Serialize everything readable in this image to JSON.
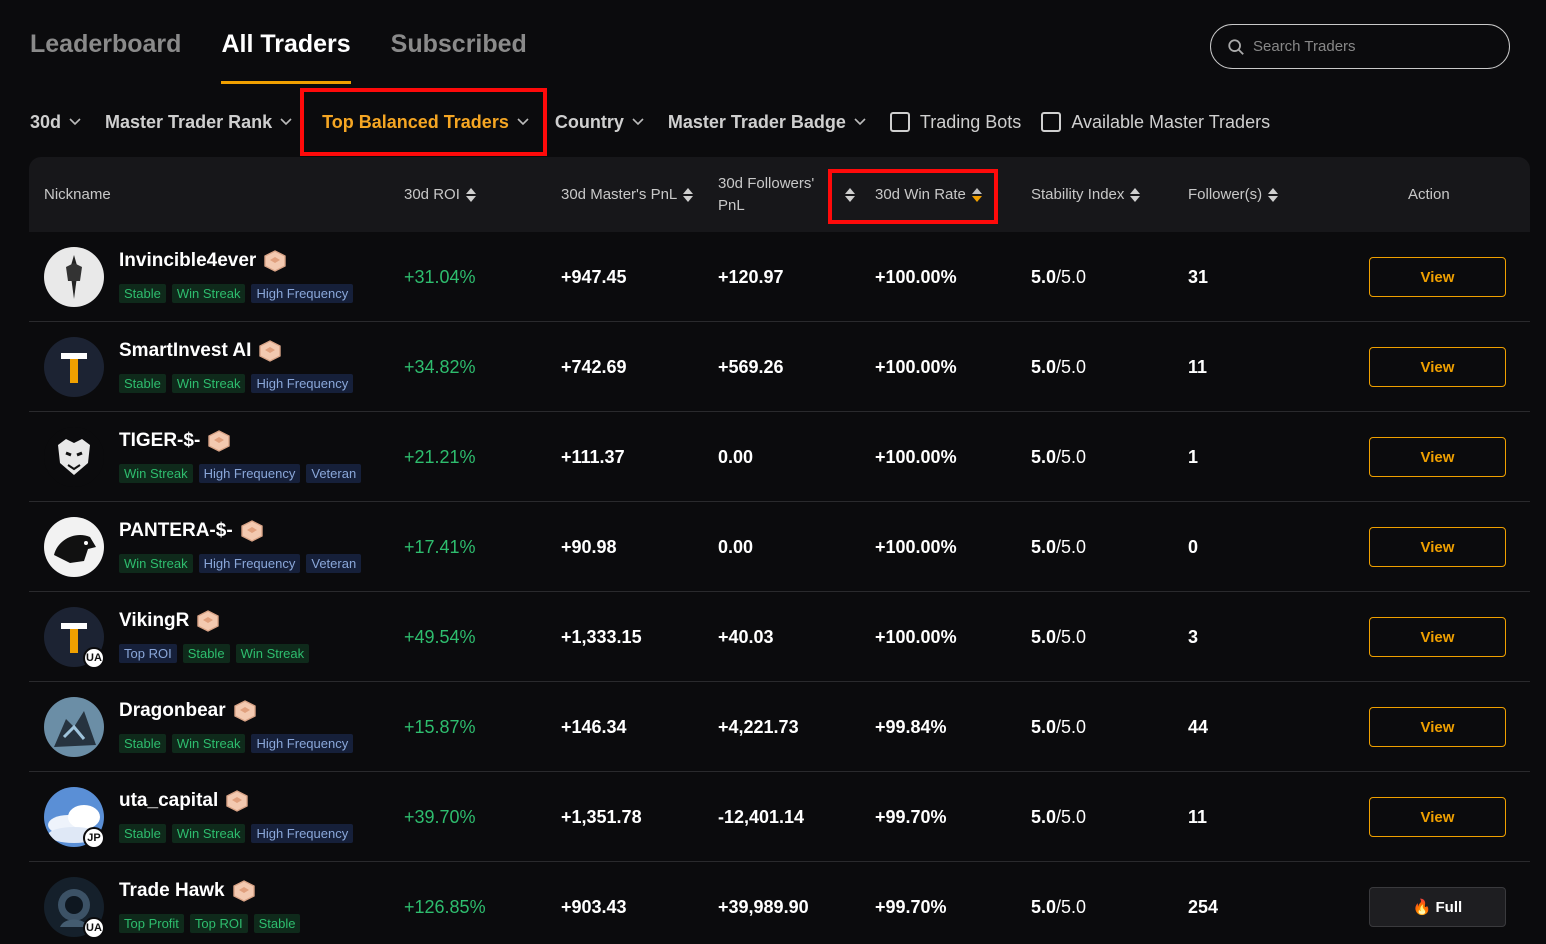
{
  "tabs": [
    {
      "label": "Leaderboard",
      "active": false
    },
    {
      "label": "All Traders",
      "active": true
    },
    {
      "label": "Subscribed",
      "active": false
    }
  ],
  "search": {
    "placeholder": "Search Traders"
  },
  "filters": {
    "period": "30d",
    "rank": "Master Trader Rank",
    "balanced": "Top Balanced Traders",
    "country": "Country",
    "badge": "Master Trader Badge",
    "bots": "Trading Bots",
    "available": "Available Master Traders"
  },
  "columns": {
    "nickname": "Nickname",
    "roi": "30d ROI",
    "pnl": "30d Master's PnL",
    "followers_pnl_1": "30d Followers'",
    "followers_pnl_2": "PnL",
    "win_rate": "30d Win Rate",
    "stability": "Stability Index",
    "followers": "Follower(s)",
    "action": "Action"
  },
  "colors": {
    "accent": "#f0a000",
    "positive": "#2ebd6e",
    "highlight": "#ff0a0a"
  },
  "rows": [
    {
      "nick": "Invincible4ever",
      "tags": [
        [
          "Stable",
          "green"
        ],
        [
          "Win Streak",
          "green"
        ],
        [
          "High Frequency",
          "blue"
        ]
      ],
      "roi": "+31.04%",
      "pnl": "+947.45",
      "fpnl": "+120.97",
      "wr": "+100.00%",
      "stab": "5.0",
      "stab_max": "/5.0",
      "followers": "31",
      "action": "View",
      "flag": ""
    },
    {
      "nick": "SmartInvest AI",
      "tags": [
        [
          "Stable",
          "green"
        ],
        [
          "Win Streak",
          "green"
        ],
        [
          "High Frequency",
          "blue"
        ]
      ],
      "roi": "+34.82%",
      "pnl": "+742.69",
      "fpnl": "+569.26",
      "wr": "+100.00%",
      "stab": "5.0",
      "stab_max": "/5.0",
      "followers": "11",
      "action": "View",
      "flag": ""
    },
    {
      "nick": "TIGER-$-",
      "tags": [
        [
          "Win Streak",
          "green"
        ],
        [
          "High Frequency",
          "blue"
        ],
        [
          "Veteran",
          "blue"
        ]
      ],
      "roi": "+21.21%",
      "pnl": "+111.37",
      "fpnl": "0.00",
      "wr": "+100.00%",
      "stab": "5.0",
      "stab_max": "/5.0",
      "followers": "1",
      "action": "View",
      "flag": ""
    },
    {
      "nick": "PANTERA-$-",
      "tags": [
        [
          "Win Streak",
          "green"
        ],
        [
          "High Frequency",
          "blue"
        ],
        [
          "Veteran",
          "blue"
        ]
      ],
      "roi": "+17.41%",
      "pnl": "+90.98",
      "fpnl": "0.00",
      "wr": "+100.00%",
      "stab": "5.0",
      "stab_max": "/5.0",
      "followers": "0",
      "action": "View",
      "flag": ""
    },
    {
      "nick": "VikingR",
      "tags": [
        [
          "Top ROI",
          "blue"
        ],
        [
          "Stable",
          "green"
        ],
        [
          "Win Streak",
          "green"
        ]
      ],
      "roi": "+49.54%",
      "pnl": "+1,333.15",
      "fpnl": "+40.03",
      "wr": "+100.00%",
      "stab": "5.0",
      "stab_max": "/5.0",
      "followers": "3",
      "action": "View",
      "flag": "UA"
    },
    {
      "nick": "Dragonbear",
      "tags": [
        [
          "Stable",
          "green"
        ],
        [
          "Win Streak",
          "green"
        ],
        [
          "High Frequency",
          "blue"
        ]
      ],
      "roi": "+15.87%",
      "pnl": "+146.34",
      "fpnl": "+4,221.73",
      "wr": "+99.84%",
      "stab": "5.0",
      "stab_max": "/5.0",
      "followers": "44",
      "action": "View",
      "flag": ""
    },
    {
      "nick": "uta_capital",
      "tags": [
        [
          "Stable",
          "green"
        ],
        [
          "Win Streak",
          "green"
        ],
        [
          "High Frequency",
          "blue"
        ]
      ],
      "roi": "+39.70%",
      "pnl": "+1,351.78",
      "fpnl": "-12,401.14",
      "wr": "+99.70%",
      "stab": "5.0",
      "stab_max": "/5.0",
      "followers": "11",
      "action": "View",
      "flag": "JP"
    },
    {
      "nick": "Trade Hawk",
      "tags": [
        [
          "Top Profit",
          "green"
        ],
        [
          "Top ROI",
          "green"
        ],
        [
          "Stable",
          "green"
        ]
      ],
      "roi": "+126.85%",
      "pnl": "+903.43",
      "fpnl": "+39,989.90",
      "wr": "+99.70%",
      "stab": "5.0",
      "stab_max": "/5.0",
      "followers": "254",
      "action": "Full",
      "flag": "UA"
    }
  ]
}
